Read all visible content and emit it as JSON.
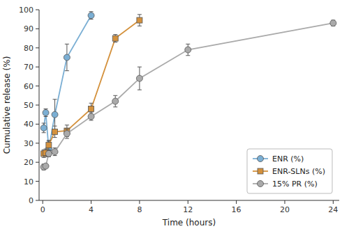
{
  "chart_data": {
    "type": "line",
    "xlabel": "Time (hours)",
    "ylabel": "Cumulative release (%)",
    "xlim": [
      -0.3,
      24.5
    ],
    "ylim": [
      0,
      100
    ],
    "xticks": [
      0,
      4,
      8,
      12,
      16,
      20,
      24
    ],
    "yticks": [
      0,
      10,
      20,
      30,
      40,
      50,
      60,
      70,
      80,
      90,
      100
    ],
    "grid": false,
    "legend": "lower right",
    "series": [
      {
        "name": "ENR (%)",
        "color": "#7BAFD4",
        "marker": "circle",
        "x": [
          0.083,
          0.25,
          0.5,
          1,
          2,
          4
        ],
        "values": [
          38,
          46,
          27,
          45,
          75,
          97
        ],
        "yerr": [
          2.5,
          2,
          4,
          8,
          7,
          2
        ]
      },
      {
        "name": "ENR-SLNs (%)",
        "color": "#D4913C",
        "marker": "square",
        "x": [
          0.083,
          0.25,
          0.5,
          1,
          2,
          4,
          6,
          8
        ],
        "values": [
          24.5,
          25,
          29,
          36,
          36.5,
          48,
          85,
          94.5
        ],
        "yerr": [
          2,
          2,
          2.5,
          3,
          3,
          3,
          2,
          3
        ]
      },
      {
        "name": "15% PR (%)",
        "color": "#AAAAAA",
        "marker": "circle",
        "x": [
          0.083,
          0.25,
          0.5,
          1,
          2,
          4,
          6,
          8,
          12,
          24
        ],
        "values": [
          17.5,
          18,
          24.5,
          25.5,
          35,
          44,
          52,
          64,
          79,
          93
        ],
        "yerr": [
          1.5,
          1,
          1.5,
          2,
          2.5,
          2,
          3,
          6,
          3,
          1.5
        ]
      }
    ]
  }
}
